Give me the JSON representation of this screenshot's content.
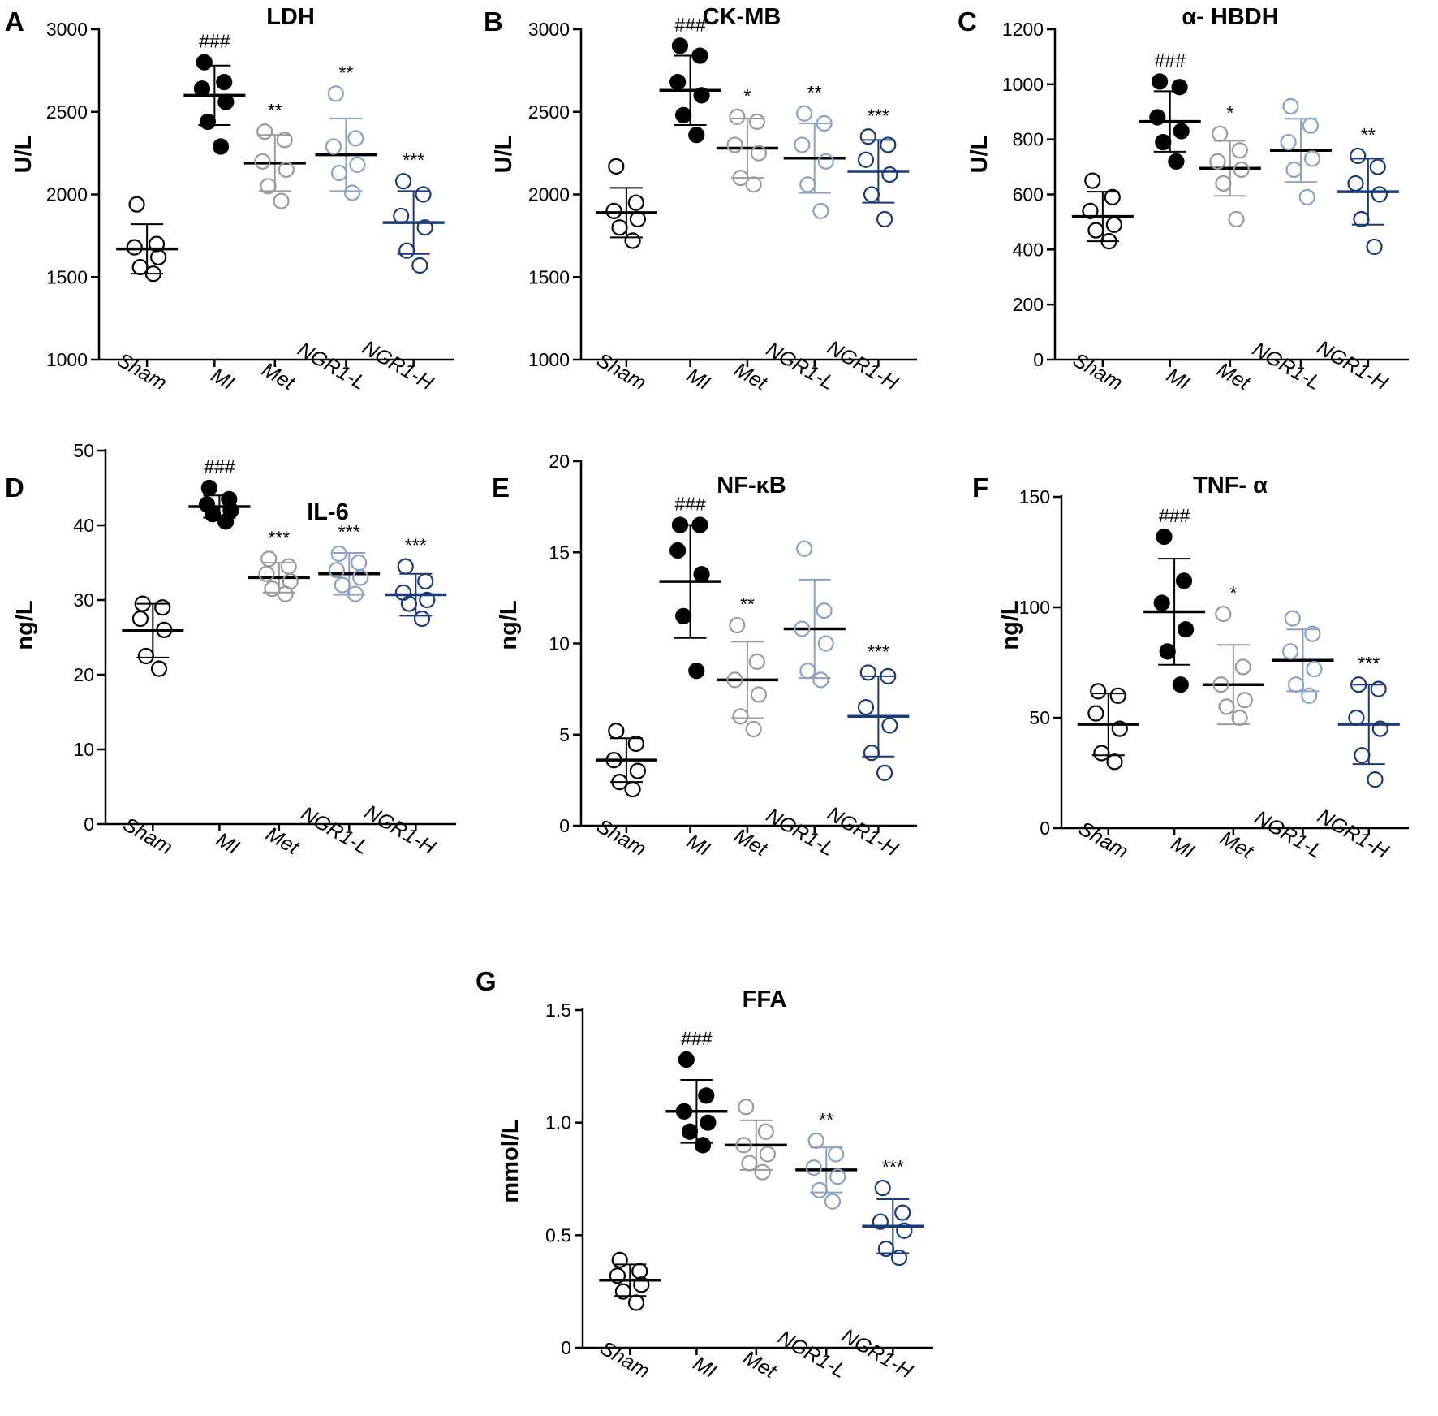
{
  "colors": {
    "Sham": "#000000",
    "MI": "#000000",
    "Met": "#9b9b9b",
    "NGR1-L": "#8aa2c6",
    "NGR1-H": "#1b3a7a"
  },
  "chart_data": [
    {
      "letter": "A",
      "type": "scatter",
      "title": "LDH",
      "ylabel": "U/L",
      "ylim": [
        1000,
        3000
      ],
      "yticks": [
        1000,
        1500,
        2000,
        2500,
        3000
      ],
      "categories": [
        "Sham",
        "MI",
        "Met",
        "NGR1-L",
        "NGR1-H"
      ],
      "groups": [
        {
          "name": "Sham",
          "filled": false,
          "points": [
            1940,
            1700,
            1680,
            1620,
            1560,
            1520
          ],
          "mean": 1670,
          "sd": 150,
          "sig": ""
        },
        {
          "name": "MI",
          "filled": true,
          "points": [
            2800,
            2680,
            2640,
            2560,
            2440,
            2290
          ],
          "mean": 2600,
          "sd": 180,
          "sig": "###"
        },
        {
          "name": "Met",
          "filled": false,
          "points": [
            2380,
            2330,
            2200,
            2150,
            2050,
            1960
          ],
          "mean": 2190,
          "sd": 170,
          "sig": "**"
        },
        {
          "name": "NGR1-L",
          "filled": false,
          "points": [
            2610,
            2340,
            2290,
            2180,
            2130,
            2010
          ],
          "mean": 2240,
          "sd": 220,
          "sig": "**"
        },
        {
          "name": "NGR1-H",
          "filled": false,
          "points": [
            2080,
            2000,
            1870,
            1800,
            1660,
            1570
          ],
          "mean": 1830,
          "sd": 190,
          "sig": "***"
        }
      ]
    },
    {
      "letter": "B",
      "type": "scatter",
      "title": "CK-MB",
      "ylabel": "U/L",
      "ylim": [
        1000,
        3000
      ],
      "yticks": [
        1000,
        1500,
        2000,
        2500,
        3000
      ],
      "categories": [
        "Sham",
        "MI",
        "Met",
        "NGR1-L",
        "NGR1-H"
      ],
      "groups": [
        {
          "name": "Sham",
          "filled": false,
          "points": [
            2170,
            1950,
            1900,
            1850,
            1800,
            1720
          ],
          "mean": 1890,
          "sd": 150,
          "sig": ""
        },
        {
          "name": "MI",
          "filled": true,
          "points": [
            2900,
            2840,
            2680,
            2600,
            2480,
            2360
          ],
          "mean": 2630,
          "sd": 210,
          "sig": "###"
        },
        {
          "name": "Met",
          "filled": false,
          "points": [
            2470,
            2440,
            2300,
            2250,
            2100,
            2060
          ],
          "mean": 2280,
          "sd": 180,
          "sig": "*"
        },
        {
          "name": "NGR1-L",
          "filled": false,
          "points": [
            2490,
            2430,
            2300,
            2200,
            2060,
            1900
          ],
          "mean": 2220,
          "sd": 210,
          "sig": "**"
        },
        {
          "name": "NGR1-H",
          "filled": false,
          "points": [
            2350,
            2300,
            2210,
            2120,
            2000,
            1850
          ],
          "mean": 2140,
          "sd": 190,
          "sig": "***"
        }
      ]
    },
    {
      "letter": "C",
      "type": "scatter",
      "title": "α- HBDH",
      "ylabel": "U/L",
      "ylim": [
        0,
        1200
      ],
      "yticks": [
        0,
        200,
        400,
        600,
        800,
        1000,
        1200
      ],
      "categories": [
        "Sham",
        "MI",
        "Met",
        "NGR1-L",
        "NGR1-H"
      ],
      "groups": [
        {
          "name": "Sham",
          "filled": false,
          "points": [
            650,
            590,
            540,
            490,
            470,
            430
          ],
          "mean": 520,
          "sd": 90,
          "sig": ""
        },
        {
          "name": "MI",
          "filled": true,
          "points": [
            1010,
            990,
            880,
            830,
            790,
            720
          ],
          "mean": 865,
          "sd": 110,
          "sig": "###"
        },
        {
          "name": "Met",
          "filled": false,
          "points": [
            820,
            760,
            720,
            690,
            640,
            510
          ],
          "mean": 695,
          "sd": 100,
          "sig": "*"
        },
        {
          "name": "NGR1-L",
          "filled": false,
          "points": [
            920,
            850,
            790,
            730,
            690,
            590
          ],
          "mean": 760,
          "sd": 115,
          "sig": ""
        },
        {
          "name": "NGR1-H",
          "filled": false,
          "points": [
            740,
            700,
            640,
            600,
            510,
            410
          ],
          "mean": 610,
          "sd": 120,
          "sig": "**"
        }
      ]
    },
    {
      "letter": "D",
      "type": "scatter",
      "title": "IL-6",
      "ylabel": "ng/L",
      "ylim": [
        0,
        50
      ],
      "yticks": [
        0,
        10,
        20,
        30,
        40,
        50
      ],
      "categories": [
        "Sham",
        "MI",
        "Met",
        "NGR1-L",
        "NGR1-H"
      ],
      "groups": [
        {
          "name": "Sham",
          "filled": false,
          "points": [
            29.5,
            29.0,
            27.5,
            26.0,
            22.5,
            20.8
          ],
          "mean": 25.9,
          "sd": 3.6,
          "sig": ""
        },
        {
          "name": "MI",
          "filled": true,
          "points": [
            45.0,
            43.5,
            42.8,
            42.0,
            41.5,
            40.5
          ],
          "mean": 42.5,
          "sd": 1.5,
          "sig": "###"
        },
        {
          "name": "Met",
          "filled": false,
          "points": [
            35.5,
            34.5,
            33.5,
            32.5,
            31.5,
            30.8
          ],
          "mean": 33.0,
          "sd": 2.0,
          "sig": "***"
        },
        {
          "name": "NGR1-L",
          "filled": false,
          "points": [
            36.2,
            35.0,
            34.0,
            33.0,
            32.0,
            30.8
          ],
          "mean": 33.5,
          "sd": 2.8,
          "sig": "***"
        },
        {
          "name": "NGR1-H",
          "filled": false,
          "points": [
            34.5,
            32.5,
            31.0,
            30.0,
            29.5,
            27.5
          ],
          "mean": 30.7,
          "sd": 2.8,
          "sig": "***"
        }
      ]
    },
    {
      "letter": "E",
      "type": "scatter",
      "title": "NF-κB",
      "ylabel": "ng/L",
      "ylim": [
        0,
        20
      ],
      "yticks": [
        0,
        5,
        10,
        15,
        20
      ],
      "categories": [
        "Sham",
        "MI",
        "Met",
        "NGR1-L",
        "NGR1-H"
      ],
      "groups": [
        {
          "name": "Sham",
          "filled": false,
          "points": [
            5.2,
            4.5,
            3.6,
            3.0,
            2.4,
            2.0
          ],
          "mean": 3.6,
          "sd": 1.2,
          "sig": ""
        },
        {
          "name": "MI",
          "filled": true,
          "points": [
            16.5,
            16.5,
            15.1,
            13.8,
            11.5,
            8.5
          ],
          "mean": 13.4,
          "sd": 3.1,
          "sig": "###"
        },
        {
          "name": "Met",
          "filled": false,
          "points": [
            11.0,
            9.0,
            8.0,
            7.2,
            6.0,
            5.3
          ],
          "mean": 8.0,
          "sd": 2.1,
          "sig": "**"
        },
        {
          "name": "NGR1-L",
          "filled": false,
          "points": [
            15.2,
            11.8,
            10.8,
            10.0,
            8.5,
            8.0
          ],
          "mean": 10.8,
          "sd": 2.7,
          "sig": ""
        },
        {
          "name": "NGR1-H",
          "filled": false,
          "points": [
            8.4,
            8.2,
            6.5,
            5.5,
            4.0,
            2.9
          ],
          "mean": 6.0,
          "sd": 2.2,
          "sig": "***"
        }
      ]
    },
    {
      "letter": "F",
      "type": "scatter",
      "title": "TNF- α",
      "ylabel": "ng/L",
      "ylim": [
        0,
        150
      ],
      "yticks": [
        0,
        50,
        100,
        150
      ],
      "categories": [
        "Sham",
        "MI",
        "Met",
        "NGR1-L",
        "NGR1-H"
      ],
      "groups": [
        {
          "name": "Sham",
          "filled": false,
          "points": [
            62,
            60,
            52,
            45,
            34,
            30
          ],
          "mean": 47,
          "sd": 14,
          "sig": ""
        },
        {
          "name": "MI",
          "filled": true,
          "points": [
            132,
            112,
            102,
            90,
            80,
            65
          ],
          "mean": 98,
          "sd": 24,
          "sig": "###"
        },
        {
          "name": "Met",
          "filled": false,
          "points": [
            97,
            73,
            65,
            58,
            55,
            50
          ],
          "mean": 65,
          "sd": 18,
          "sig": "*"
        },
        {
          "name": "NGR1-L",
          "filled": false,
          "points": [
            95,
            88,
            80,
            72,
            65,
            60
          ],
          "mean": 76,
          "sd": 14,
          "sig": ""
        },
        {
          "name": "NGR1-H",
          "filled": false,
          "points": [
            65,
            63,
            50,
            45,
            33,
            22
          ],
          "mean": 47,
          "sd": 18,
          "sig": "***"
        }
      ]
    },
    {
      "letter": "G",
      "type": "scatter",
      "title": "FFA",
      "ylabel": "mmol/L",
      "ylim": [
        0,
        1.5
      ],
      "yticks": [
        0,
        0.5,
        1.0,
        1.5
      ],
      "ytick_labels": [
        "0",
        "0.5",
        "1.0",
        "1.5"
      ],
      "categories": [
        "Sham",
        "MI",
        "Met",
        "NGR1-L",
        "NGR1-H"
      ],
      "groups": [
        {
          "name": "Sham",
          "filled": false,
          "points": [
            0.39,
            0.34,
            0.32,
            0.28,
            0.25,
            0.2
          ],
          "mean": 0.3,
          "sd": 0.07,
          "sig": ""
        },
        {
          "name": "MI",
          "filled": true,
          "points": [
            1.28,
            1.12,
            1.05,
            1.0,
            0.96,
            0.9
          ],
          "mean": 1.05,
          "sd": 0.14,
          "sig": "###"
        },
        {
          "name": "Met",
          "filled": false,
          "points": [
            1.07,
            0.96,
            0.9,
            0.86,
            0.82,
            0.78
          ],
          "mean": 0.9,
          "sd": 0.11,
          "sig": ""
        },
        {
          "name": "NGR1-L",
          "filled": false,
          "points": [
            0.92,
            0.86,
            0.8,
            0.76,
            0.7,
            0.65
          ],
          "mean": 0.79,
          "sd": 0.1,
          "sig": "**"
        },
        {
          "name": "NGR1-H",
          "filled": false,
          "points": [
            0.71,
            0.6,
            0.56,
            0.52,
            0.44,
            0.4
          ],
          "mean": 0.54,
          "sd": 0.12,
          "sig": "***"
        }
      ]
    }
  ]
}
